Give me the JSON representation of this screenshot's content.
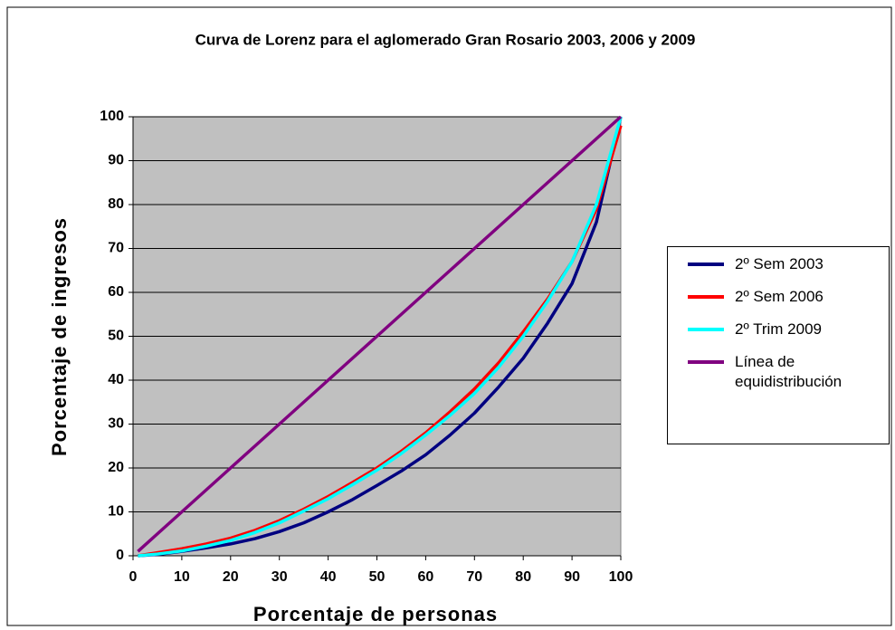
{
  "chart_data": {
    "type": "line",
    "title": "Curva de Lorenz para el aglomerado Gran Rosario 2003, 2006 y 2009",
    "x_label": "Porcentaje de personas",
    "y_label": "Porcentaje de ingresos",
    "x": [
      1,
      5,
      10,
      15,
      20,
      25,
      30,
      35,
      40,
      45,
      50,
      55,
      60,
      65,
      70,
      75,
      80,
      85,
      90,
      95,
      100
    ],
    "series": [
      {
        "name": "2º Sem 2003",
        "color": "#000080",
        "values": [
          0,
          0.3,
          1,
          1.8,
          2.7,
          3.9,
          5.5,
          7.5,
          10,
          12.8,
          16,
          19.3,
          23,
          27.5,
          32.5,
          38.5,
          45,
          53,
          62,
          76,
          100
        ]
      },
      {
        "name": "2º Sem 2006",
        "color": "#ff0000",
        "values": [
          0,
          0.7,
          1.6,
          2.7,
          4,
          5.8,
          8,
          10.6,
          13.5,
          16.7,
          20,
          23.8,
          28,
          32.8,
          38,
          44,
          51,
          58.5,
          67,
          79,
          98
        ]
      },
      {
        "name": "2º Trim 2009",
        "color": "#00ffff",
        "values": [
          0,
          0.4,
          1.1,
          2.2,
          3.5,
          5.3,
          7.5,
          10.2,
          13,
          16.2,
          19.5,
          23.3,
          27.5,
          32,
          37,
          43,
          50,
          58,
          67,
          80,
          100
        ]
      },
      {
        "name": "Línea de equidistribución",
        "color": "#800080",
        "values": [
          1,
          5,
          10,
          15,
          20,
          25,
          30,
          35,
          40,
          45,
          50,
          55,
          60,
          65,
          70,
          75,
          80,
          85,
          90,
          95,
          100
        ]
      }
    ],
    "xlim": [
      0,
      100
    ],
    "xticks": [
      0,
      10,
      20,
      30,
      40,
      50,
      60,
      70,
      80,
      90,
      100
    ],
    "ylim": [
      0,
      100
    ],
    "yticks": [
      0,
      10,
      20,
      30,
      40,
      50,
      60,
      70,
      80,
      90,
      100
    ],
    "grid": true,
    "legend": "right",
    "plot_background": "#c0c0c0"
  }
}
